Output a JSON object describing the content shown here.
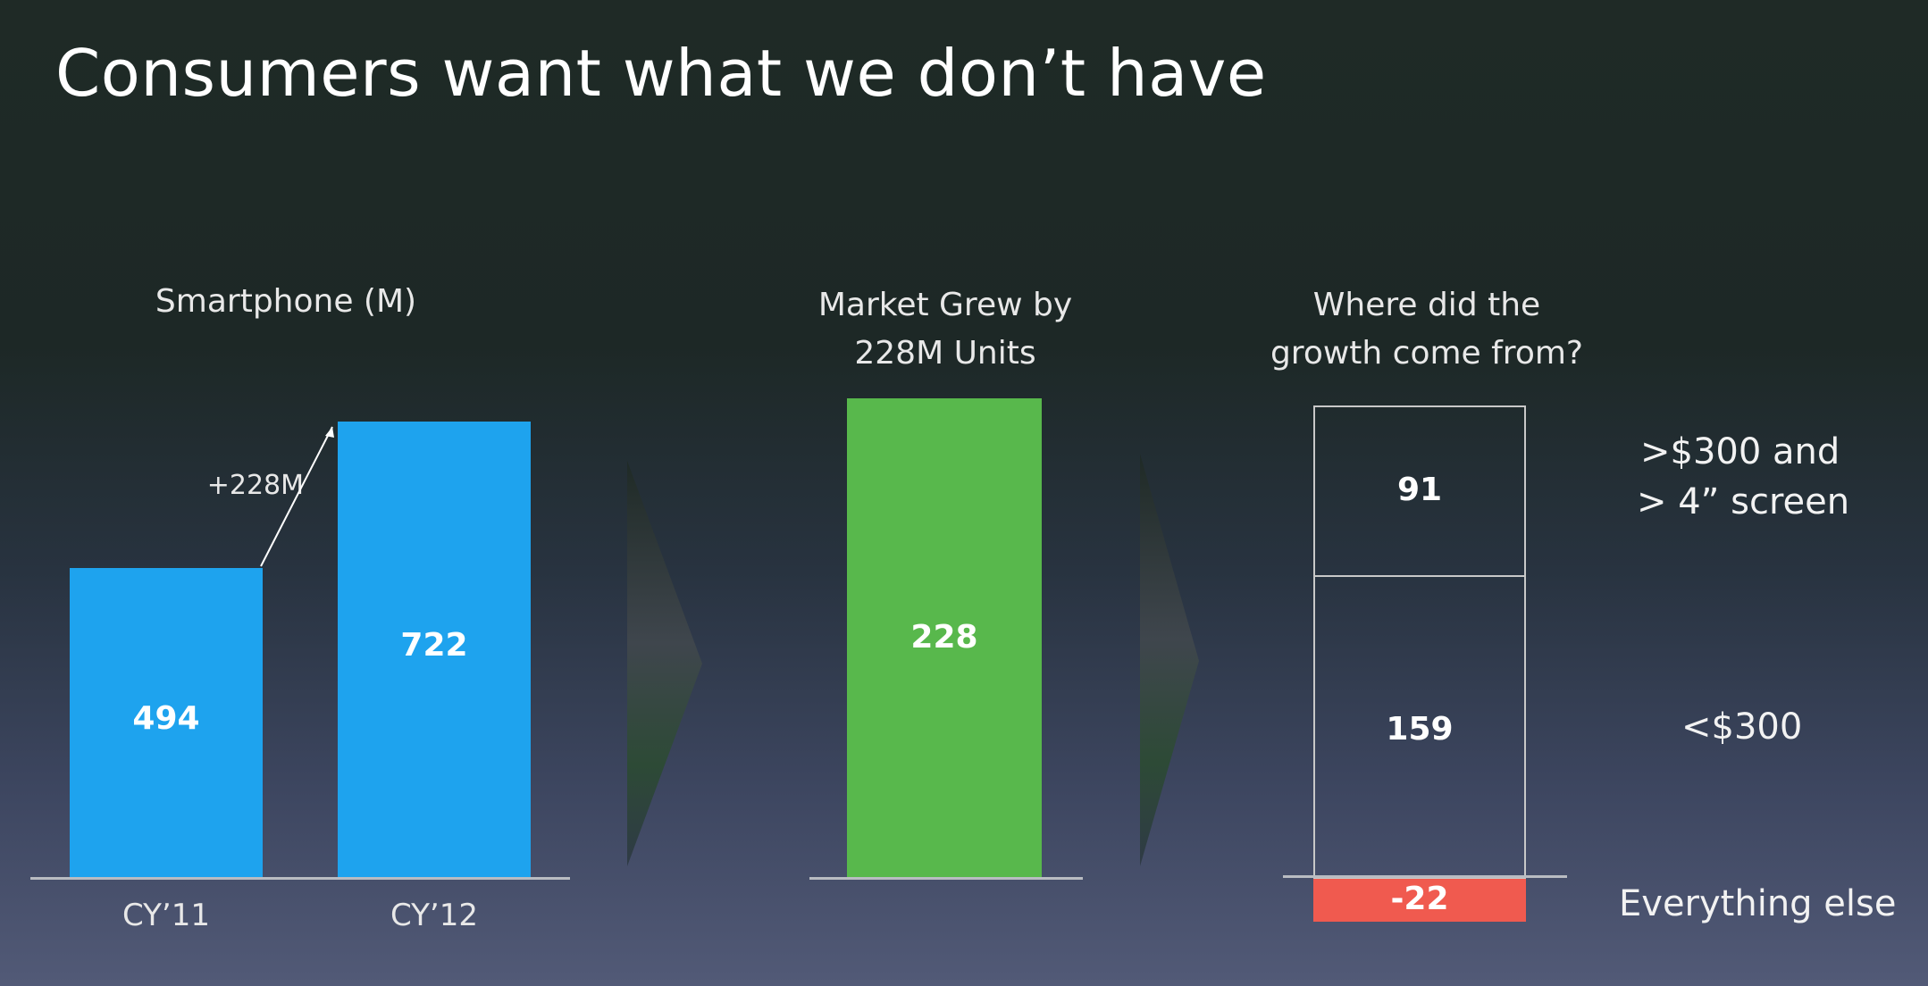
{
  "title": "Consumers want what we don’t have",
  "chart_data": [
    {
      "type": "bar",
      "title": "Smartphone (M)",
      "categories": [
        "CY’11",
        "CY’12"
      ],
      "values": [
        494,
        722
      ],
      "value_labels": [
        "494",
        "722"
      ],
      "annotation": "+228M",
      "ylim": [
        0,
        800
      ],
      "colors": [
        "#1ea3ee",
        "#1ea3ee"
      ]
    },
    {
      "type": "bar",
      "title_lines": [
        "Market Grew by",
        "228M Units"
      ],
      "categories": [
        ""
      ],
      "values": [
        228
      ],
      "value_labels": [
        "228"
      ],
      "color": "#58b84c"
    },
    {
      "type": "bar",
      "title_lines": [
        "Where did the",
        "growth come from?"
      ],
      "segments": [
        {
          "label_lines": [
            ">$300 and",
            "> 4” screen"
          ],
          "value": 91,
          "value_label": "91"
        },
        {
          "label_lines": [
            "<$300"
          ],
          "value": 159,
          "value_label": "159"
        },
        {
          "label_lines": [
            "Everything else"
          ],
          "value": -22,
          "value_label": "-22",
          "color": "#f05a4f"
        }
      ]
    }
  ]
}
